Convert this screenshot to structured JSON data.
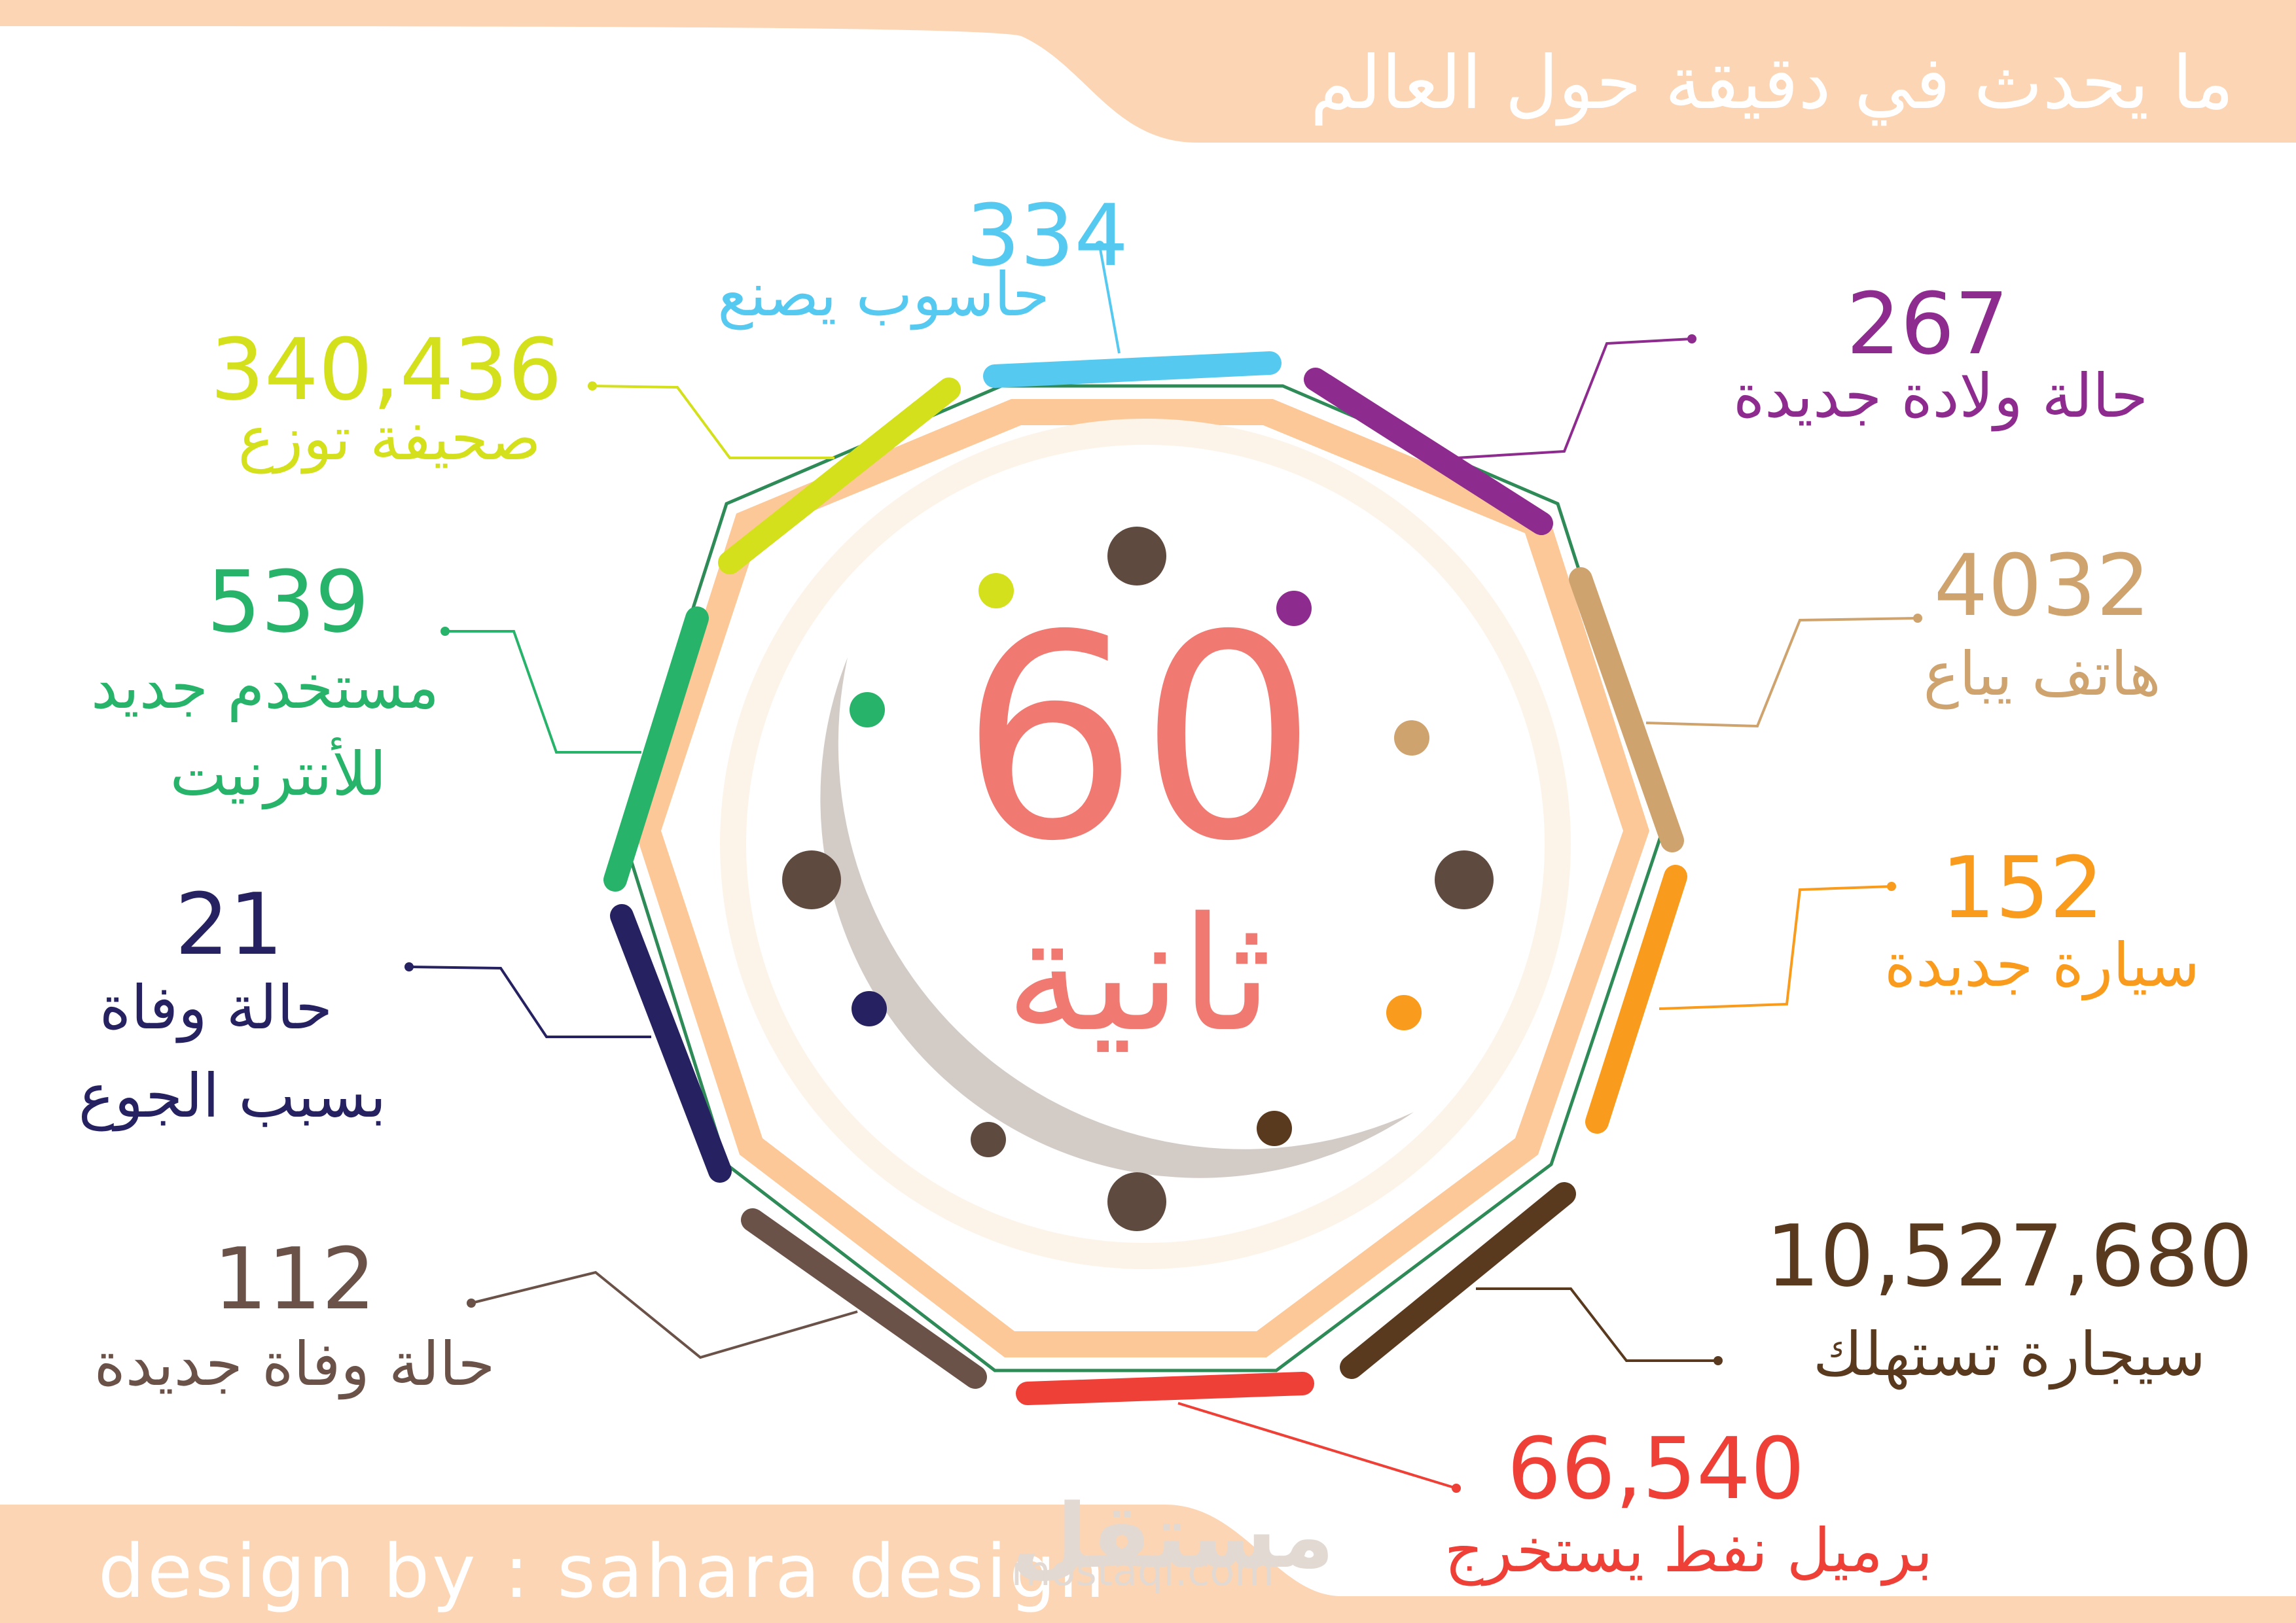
{
  "title": "ما يحدث في دقيقة حول العالم",
  "credit": "design by : sahara design",
  "center": {
    "number": "60",
    "unit": "ثانية"
  },
  "watermark": {
    "arabic": "مستقل",
    "latin": "mostaql.com"
  },
  "colors": {
    "banner": "#fcd5b4",
    "octagon_fill": "#fcc898",
    "inner_ring": "#fdf4e9",
    "crescent": "#d3cbc6",
    "thin_ring": "#2e8b57",
    "center_text": "#f07a72"
  },
  "stats": [
    {
      "id": "computers",
      "value": "334",
      "lines": [
        "حاسوب يصنع"
      ],
      "color": "#55c9f0"
    },
    {
      "id": "births",
      "value": "267",
      "lines": [
        "حالة ولادة جديدة"
      ],
      "color": "#8e2b8e"
    },
    {
      "id": "phones",
      "value": "4032",
      "lines": [
        "هاتف يباع"
      ],
      "color": "#cfa36e"
    },
    {
      "id": "cars",
      "value": "152",
      "lines": [
        "سيارة جديدة"
      ],
      "color": "#f99b1c"
    },
    {
      "id": "cigarettes",
      "value": "10,527,680",
      "lines": [
        "سيجارة تستهلك"
      ],
      "color": "#5a3a1e"
    },
    {
      "id": "oil",
      "value": "66,540",
      "lines": [
        "برميل نفط يستخرج"
      ],
      "color": "#ee4036"
    },
    {
      "id": "deaths",
      "value": "112",
      "lines": [
        "حالة وفاة جديدة"
      ],
      "color": "#6b5248"
    },
    {
      "id": "hunger",
      "value": "21",
      "lines": [
        "حالة وفاة",
        "بسبب الجوع"
      ],
      "color": "#262261"
    },
    {
      "id": "internet",
      "value": "539",
      "lines": [
        "مستخدم جديد",
        "للأنترنيت"
      ],
      "color": "#27b36a"
    },
    {
      "id": "newspapers",
      "value": "340,436",
      "lines": [
        "صحيفة توزع"
      ],
      "color": "#d4e01c"
    }
  ]
}
